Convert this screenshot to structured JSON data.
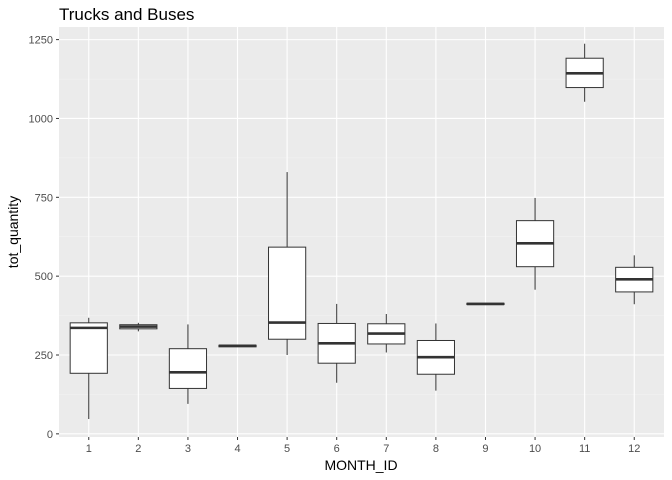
{
  "chart_data": {
    "type": "boxplot",
    "title": "Trucks and Buses",
    "xlabel": "MONTH_ID",
    "ylabel": "tot_quantity",
    "categories": [
      "1",
      "2",
      "3",
      "4",
      "5",
      "6",
      "7",
      "8",
      "9",
      "10",
      "11",
      "12"
    ],
    "y_ticks": [
      0,
      250,
      500,
      750,
      1000,
      1250
    ],
    "y_tick_labels": [
      "0",
      "250",
      "500",
      "750",
      "1000",
      "1250"
    ],
    "ylim": [
      -10,
      1290
    ],
    "grid": true,
    "boxes": [
      {
        "month": "1",
        "min": 47,
        "q1": 192,
        "median": 336,
        "q3": 352,
        "max": 368
      },
      {
        "month": "2",
        "min": 325,
        "q1": 333,
        "median": 340,
        "q3": 346,
        "max": 352
      },
      {
        "month": "3",
        "min": 95,
        "q1": 144,
        "median": 195,
        "q3": 270,
        "max": 347
      },
      {
        "month": "4",
        "min": 276,
        "q1": 276,
        "median": 279,
        "q3": 281,
        "max": 281
      },
      {
        "month": "5",
        "min": 250,
        "q1": 300,
        "median": 353,
        "q3": 592,
        "max": 830
      },
      {
        "month": "6",
        "min": 162,
        "q1": 224,
        "median": 287,
        "q3": 350,
        "max": 412
      },
      {
        "month": "7",
        "min": 258,
        "q1": 285,
        "median": 318,
        "q3": 349,
        "max": 380
      },
      {
        "month": "8",
        "min": 137,
        "q1": 189,
        "median": 243,
        "q3": 296,
        "max": 350
      },
      {
        "month": "9",
        "min": 410,
        "q1": 410,
        "median": 412,
        "q3": 414,
        "max": 414
      },
      {
        "month": "10",
        "min": 457,
        "q1": 530,
        "median": 604,
        "q3": 676,
        "max": 748
      },
      {
        "month": "11",
        "min": 1053,
        "q1": 1098,
        "median": 1143,
        "q3": 1191,
        "max": 1237
      },
      {
        "month": "12",
        "min": 411,
        "q1": 450,
        "median": 490,
        "q3": 528,
        "max": 566
      }
    ]
  },
  "colors": {
    "panel_bg": "#ebebeb",
    "grid_major": "#ffffff",
    "grid_minor": "#f2f2f2",
    "box_fill": "#ffffff",
    "box_stroke": "#333333",
    "tick_text": "#4d4d4d"
  }
}
